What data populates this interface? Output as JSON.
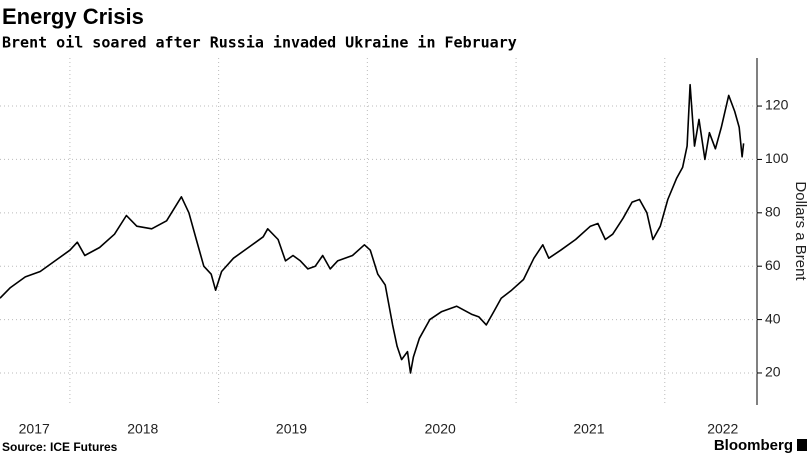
{
  "chart_data": {
    "type": "line",
    "title": "Energy Crisis",
    "subtitle": "Brent oil soared after Russia invaded Ukraine in February",
    "y_axis_label": "Dollars a Brent",
    "source": "Source: ICE Futures",
    "brand": "Bloomberg",
    "x": [
      2017.53,
      2017.6,
      2017.7,
      2017.8,
      2017.9,
      2018.0,
      2018.05,
      2018.1,
      2018.2,
      2018.3,
      2018.38,
      2018.45,
      2018.55,
      2018.65,
      2018.75,
      2018.8,
      2018.85,
      2018.9,
      2018.95,
      2018.98,
      2019.02,
      2019.1,
      2019.2,
      2019.3,
      2019.33,
      2019.4,
      2019.45,
      2019.5,
      2019.55,
      2019.6,
      2019.65,
      2019.7,
      2019.75,
      2019.8,
      2019.9,
      2019.98,
      2020.02,
      2020.07,
      2020.12,
      2020.17,
      2020.2,
      2020.23,
      2020.27,
      2020.29,
      2020.31,
      2020.35,
      2020.42,
      2020.5,
      2020.6,
      2020.7,
      2020.75,
      2020.8,
      2020.85,
      2020.9,
      2020.97,
      2021.05,
      2021.12,
      2021.18,
      2021.22,
      2021.3,
      2021.4,
      2021.5,
      2021.55,
      2021.6,
      2021.65,
      2021.72,
      2021.78,
      2021.83,
      2021.88,
      2021.92,
      2021.97,
      2022.02,
      2022.08,
      2022.12,
      2022.15,
      2022.17,
      2022.2,
      2022.23,
      2022.27,
      2022.3,
      2022.34,
      2022.38,
      2022.43,
      2022.47,
      2022.5,
      2022.52,
      2022.53
    ],
    "series": [
      {
        "name": "Brent",
        "color": "#000000",
        "values": [
          48,
          52,
          56,
          58,
          62,
          66,
          69,
          64,
          67,
          72,
          79,
          75,
          74,
          77,
          86,
          80,
          70,
          60,
          57,
          51,
          58,
          63,
          67,
          71,
          74,
          70,
          62,
          64,
          62,
          59,
          60,
          64,
          59,
          62,
          64,
          68,
          66,
          57,
          53,
          38,
          30,
          25,
          28,
          20,
          26,
          33,
          40,
          43,
          45,
          42,
          41,
          38,
          43,
          48,
          51,
          55,
          63,
          68,
          63,
          66,
          70,
          75,
          76,
          70,
          72,
          78,
          84,
          85,
          80,
          70,
          75,
          85,
          93,
          97,
          105,
          128,
          105,
          115,
          100,
          110,
          104,
          112,
          124,
          118,
          112,
          101,
          106
        ]
      }
    ],
    "xlim": [
      2017.53,
      2022.62
    ],
    "xticks": [
      {
        "value": 2017.76,
        "label": "2017"
      },
      {
        "value": 2018.49,
        "label": "2018"
      },
      {
        "value": 2019.49,
        "label": "2019"
      },
      {
        "value": 2020.49,
        "label": "2020"
      },
      {
        "value": 2021.49,
        "label": "2021"
      },
      {
        "value": 2022.39,
        "label": "2022"
      }
    ],
    "xgrid": [
      2018,
      2019,
      2020,
      2021,
      2022
    ],
    "ylim": [
      8,
      138
    ],
    "yticks": [
      20,
      40,
      60,
      80,
      100,
      120
    ],
    "grid": true
  }
}
